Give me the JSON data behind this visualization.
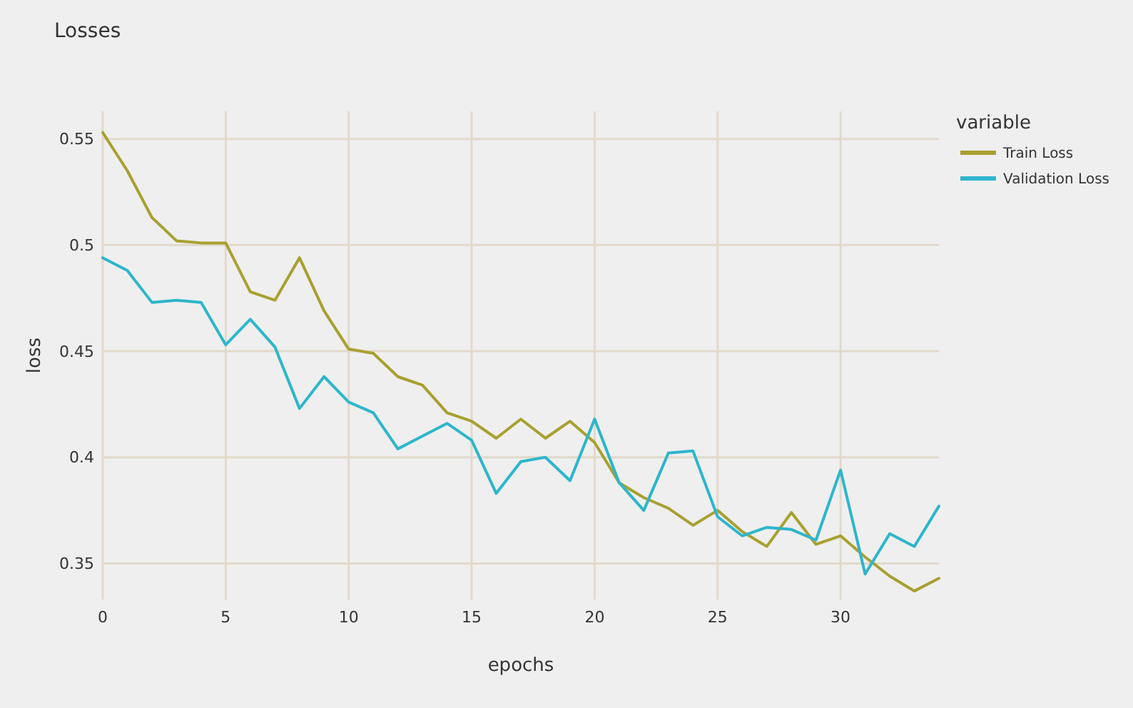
{
  "chart_data": {
    "type": "line",
    "title": "Losses",
    "xlabel": "epochs",
    "ylabel": "loss",
    "legend_title": "variable",
    "legend": "right",
    "grid": true,
    "x": [
      0,
      1,
      2,
      3,
      4,
      5,
      6,
      7,
      8,
      9,
      10,
      11,
      12,
      13,
      14,
      15,
      16,
      17,
      18,
      19,
      20,
      21,
      22,
      23,
      24,
      25,
      26,
      27,
      28,
      29,
      30,
      31,
      32,
      33,
      34
    ],
    "xlim": [
      0,
      34
    ],
    "xticks": [
      0,
      5,
      10,
      15,
      20,
      25,
      30
    ],
    "ylim": [
      0.333,
      0.563
    ],
    "yticks": [
      0.35,
      0.4,
      0.45,
      0.5,
      0.55
    ],
    "series": [
      {
        "name": "Train Loss",
        "color": "#a8a030",
        "values": [
          0.553,
          0.535,
          0.513,
          0.502,
          0.501,
          0.501,
          0.478,
          0.474,
          0.494,
          0.469,
          0.451,
          0.449,
          0.438,
          0.434,
          0.421,
          0.417,
          0.409,
          0.418,
          0.409,
          0.417,
          0.407,
          0.388,
          0.381,
          0.376,
          0.368,
          0.375,
          0.365,
          0.358,
          0.374,
          0.359,
          0.363,
          0.353,
          0.344,
          0.337,
          0.343
        ]
      },
      {
        "name": "Validation Loss",
        "color": "#2db6cc",
        "values": [
          0.494,
          0.488,
          0.473,
          0.474,
          0.473,
          0.453,
          0.465,
          0.452,
          0.423,
          0.438,
          0.426,
          0.421,
          0.404,
          0.41,
          0.416,
          0.408,
          0.383,
          0.398,
          0.4,
          0.389,
          0.418,
          0.388,
          0.375,
          0.402,
          0.403,
          0.372,
          0.363,
          0.367,
          0.366,
          0.361,
          0.394,
          0.345,
          0.364,
          0.358,
          0.377
        ]
      }
    ]
  }
}
